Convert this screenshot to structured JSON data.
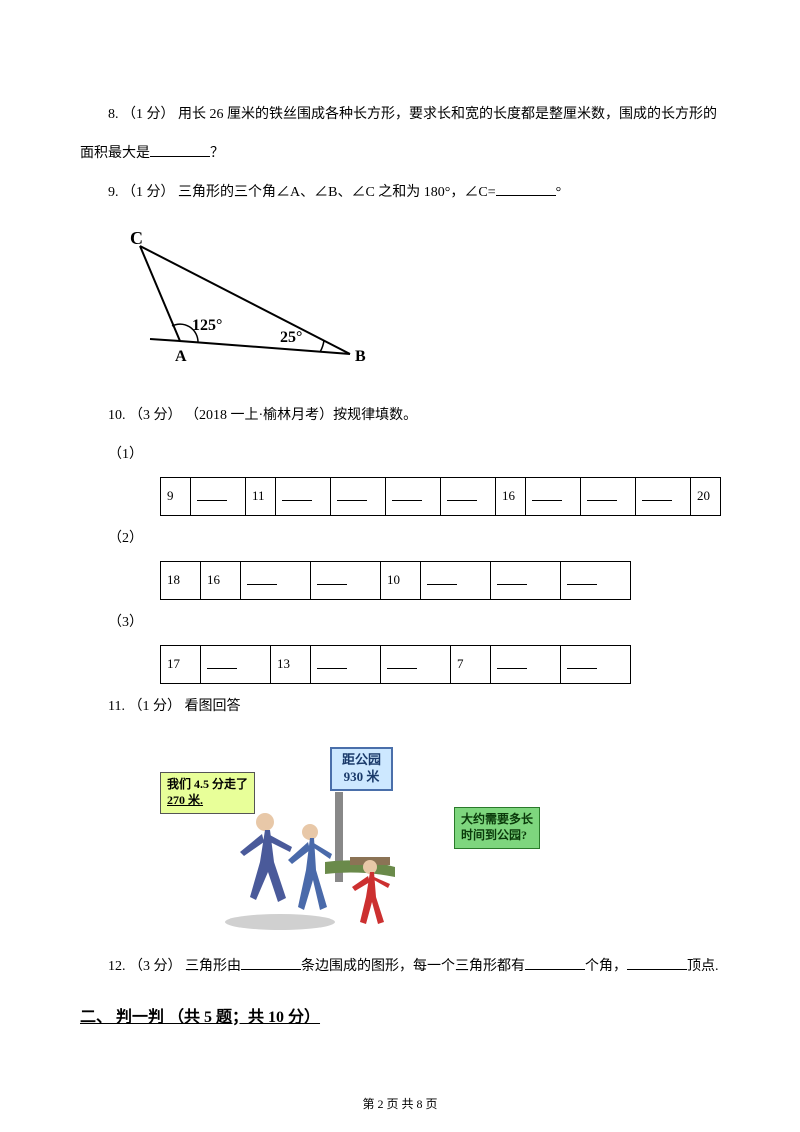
{
  "q8": {
    "text_a": "8. （1 分） 用长 26 厘米的铁丝围成各种长方形，要求长和宽的长度都是整厘米数，围成的长方形的",
    "text_b": "面积最大是",
    "text_c": "？"
  },
  "q9": {
    "text_a": "9. （1 分） 三角形的三个角∠A、∠B、∠C 之和为 180°，∠C=",
    "text_b": "°",
    "angle1": "125°",
    "angle2": "25°",
    "labelC": "C",
    "labelA": "A",
    "labelB": "B"
  },
  "q10": {
    "text": "10. （3 分） （2018 一上·榆林月考）按规律填数。",
    "sub1": "（1）",
    "sub2": "（2）",
    "sub3": "（3）",
    "t1": {
      "c0": "9",
      "c2": "11",
      "c7": "16",
      "c11": "20",
      "widths": [
        30,
        55,
        30,
        55,
        55,
        55,
        55,
        30,
        55,
        55,
        55,
        30
      ]
    },
    "t2": {
      "c0": "18",
      "c1": "16",
      "c4": "10",
      "widths": [
        40,
        40,
        70,
        70,
        40,
        70,
        70,
        70
      ]
    },
    "t3": {
      "c0": "17",
      "c2": "13",
      "c5": "7",
      "widths": [
        40,
        70,
        40,
        70,
        70,
        40,
        70,
        70
      ]
    }
  },
  "q11": {
    "text": "11. （1 分） 看图回答",
    "speech1_a": "我们 4.5 分走了",
    "speech1_b": "270 米.",
    "sign_a": "距公园",
    "sign_b": "930 米",
    "speech2_a": "大约需要多长",
    "speech2_b": "时间到公园?"
  },
  "q12": {
    "text_a": "12. （3 分） 三角形由",
    "text_b": "条边围成的图形，每一个三角形都有",
    "text_c": "个角，",
    "text_d": "顶点."
  },
  "section2": "二、 判一判 （共 5 题；共 10 分）",
  "footer": "第 2 页 共 8 页"
}
